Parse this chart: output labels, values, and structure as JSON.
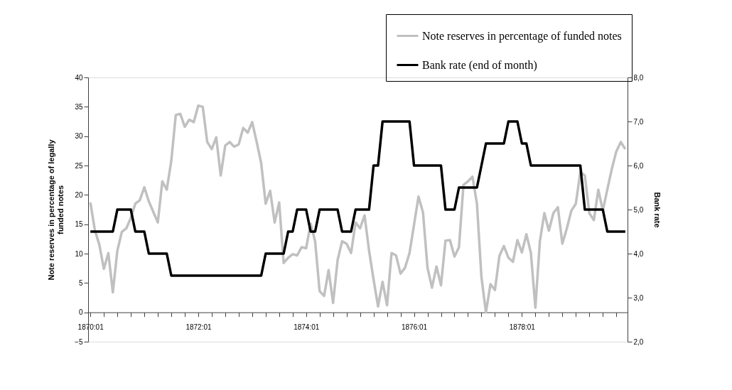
{
  "chart_data": {
    "type": "line",
    "categories": [
      "1870:01",
      null,
      null,
      null,
      null,
      null,
      null,
      null,
      null,
      null,
      null,
      null,
      null,
      null,
      null,
      null,
      null,
      null,
      null,
      null,
      null,
      null,
      null,
      null,
      "1872:01",
      null,
      null,
      null,
      null,
      null,
      null,
      null,
      null,
      null,
      null,
      null,
      null,
      null,
      null,
      null,
      null,
      null,
      null,
      null,
      null,
      null,
      null,
      null,
      "1874:01",
      null,
      null,
      null,
      null,
      null,
      null,
      null,
      null,
      null,
      null,
      null,
      null,
      null,
      null,
      null,
      null,
      null,
      null,
      null,
      null,
      null,
      null,
      null,
      "1876:01",
      null,
      null,
      null,
      null,
      null,
      null,
      null,
      null,
      null,
      null,
      null,
      null,
      null,
      null,
      null,
      null,
      null,
      null,
      null,
      null,
      null,
      null,
      null,
      "1878:01",
      null,
      null,
      null,
      null,
      null,
      null,
      null,
      null,
      null,
      null,
      null,
      null,
      null,
      null,
      null,
      null,
      null,
      null,
      null,
      null,
      null,
      null,
      null
    ],
    "series": [
      {
        "name": "Note reserves in percentage of funded notes",
        "color": "#c0c0c0",
        "values": [
          18.7,
          14,
          11.5,
          7.4,
          10.1,
          3.4,
          10.5,
          13.7,
          14.3,
          16.1,
          18.5,
          19.1,
          21.3,
          18.9,
          17.1,
          15.3,
          22.3,
          20.9,
          25.8,
          33.6,
          33.8,
          31.6,
          32.8,
          32.4,
          35.2,
          35.0,
          29.0,
          27.8,
          29.8,
          23.3,
          28.4,
          29.0,
          28.2,
          28.6,
          31.4,
          30.6,
          32.4,
          29,
          25.4,
          18.5,
          20.7,
          15.3,
          18.7,
          8.4,
          9.3,
          9.9,
          9.7,
          11.1,
          10.9,
          15.1,
          12.1,
          3.6,
          2.8,
          7.2,
          1.6,
          8.9,
          12.1,
          11.7,
          10.1,
          15.3,
          14.3,
          16.5,
          10.5,
          5.6,
          1.0,
          5.2,
          1.2,
          10.1,
          9.7,
          6.6,
          7.6,
          10.1,
          14.9,
          19.7,
          17.0,
          7.6,
          4.2,
          7.8,
          4.6,
          12.2,
          12.3,
          9.5,
          11.1,
          21.7,
          22.3,
          23.1,
          18.5,
          6.0,
          0,
          4.8,
          3.8,
          9.6,
          11.3,
          9.3,
          8.6,
          12.3,
          10.2,
          13.3,
          10.1,
          0.8,
          12.1,
          16.9,
          13.9,
          16.9,
          17.9,
          11.7,
          14.3,
          17.3,
          18.5,
          23.9,
          23.3,
          16.9,
          15.7,
          20.9,
          17.3,
          20.9,
          24.4,
          27.4,
          29.0,
          27.8
        ]
      },
      {
        "name": "Bank rate (end of month)",
        "color": "#000000",
        "axis": "y2",
        "values": [
          4.5,
          4.5,
          4.5,
          4.5,
          4.5,
          4.5,
          5.0,
          5.0,
          5.0,
          5.0,
          4.5,
          4.5,
          4.5,
          4.0,
          4.0,
          4.0,
          4.0,
          4.0,
          3.5,
          3.5,
          3.5,
          3.5,
          3.5,
          3.5,
          3.5,
          3.5,
          3.5,
          3.5,
          3.5,
          3.5,
          3.5,
          3.5,
          3.5,
          3.5,
          3.5,
          3.5,
          3.5,
          3.5,
          3.5,
          4.0,
          4.0,
          4.0,
          4.0,
          4.0,
          4.5,
          4.5,
          5.0,
          5.0,
          5.0,
          4.5,
          4.5,
          5.0,
          5.0,
          5.0,
          5.0,
          5.0,
          4.5,
          4.5,
          4.5,
          5.0,
          5.0,
          5.0,
          5.0,
          6.0,
          6.0,
          7.0,
          7.0,
          7.0,
          7.0,
          7.0,
          7.0,
          7.0,
          6.0,
          6.0,
          6.0,
          6.0,
          6.0,
          6.0,
          6.0,
          5.0,
          5.0,
          5.0,
          5.5,
          5.5,
          5.5,
          5.5,
          5.5,
          6.0,
          6.5,
          6.5,
          6.5,
          6.5,
          6.5,
          7.0,
          7.0,
          7.0,
          6.5,
          6.5,
          6.0,
          6.0,
          6.0,
          6.0,
          6.0,
          6.0,
          6.0,
          6.0,
          6.0,
          6.0,
          6.0,
          6.0,
          5.0,
          5.0,
          5.0,
          5.0,
          5.0,
          4.5,
          4.5,
          4.5,
          4.5,
          4.5
        ]
      }
    ],
    "ylabel": "Note reserves in percentage of legally funded notes",
    "y2label": "Bank rate",
    "ylim": [
      -5,
      40
    ],
    "yticks": [
      -5,
      0,
      5,
      10,
      15,
      20,
      25,
      30,
      35,
      40
    ],
    "y2lim": [
      2,
      8
    ],
    "y2ticks": [
      {
        "value": 2,
        "label": "2,0"
      },
      {
        "value": 3,
        "label": "3,0"
      },
      {
        "value": 4,
        "label": "4,0"
      },
      {
        "value": 5,
        "label": "5,0"
      },
      {
        "value": 6,
        "label": "6,0"
      },
      {
        "value": 7,
        "label": "7,0"
      },
      {
        "value": 8,
        "label": "8,0"
      }
    ],
    "legend": "top right"
  }
}
